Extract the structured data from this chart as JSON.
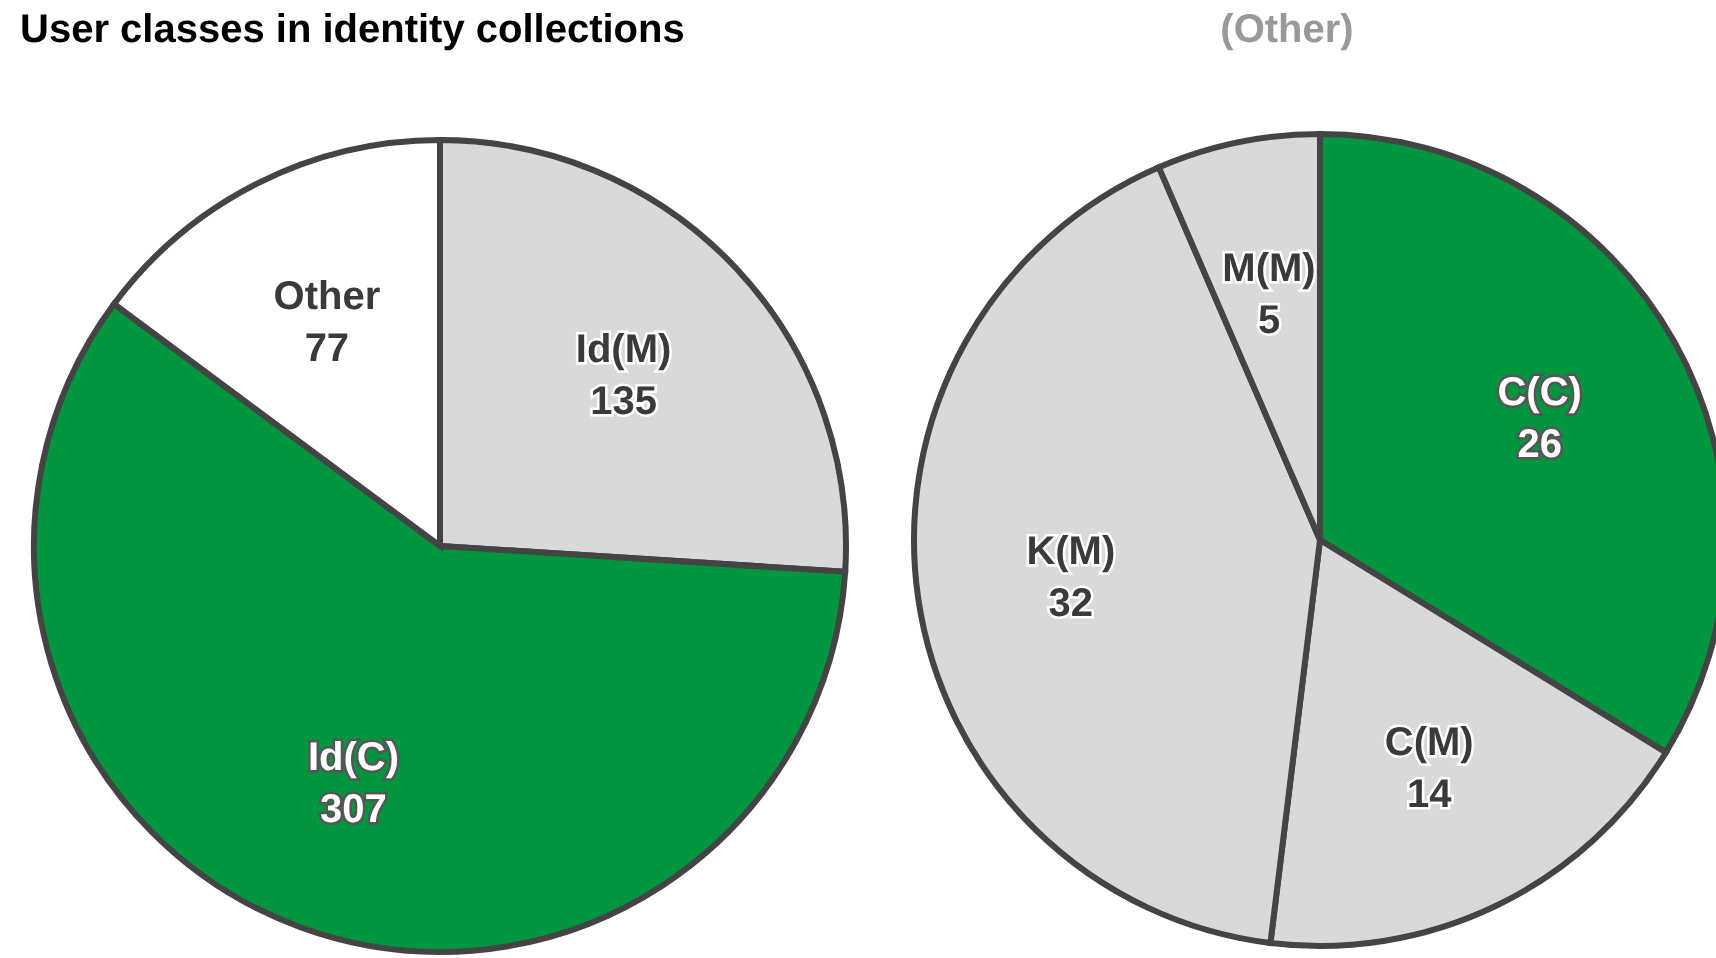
{
  "chart_data": [
    {
      "type": "pie",
      "title": "User classes in identity collections",
      "categories": [
        "Id(M)",
        "Id(C)",
        "Other"
      ],
      "values": [
        135,
        307,
        77
      ],
      "colors": [
        "#d9d9d9",
        "#00963f",
        "#ffffff"
      ],
      "data_labels": true
    },
    {
      "type": "pie",
      "title": "(Other)",
      "categories": [
        "C(C)",
        "C(M)",
        "K(M)",
        "M(M)"
      ],
      "values": [
        26,
        14,
        32,
        5
      ],
      "colors": [
        "#00963f",
        "#d9d9d9",
        "#d9d9d9",
        "#d9d9d9"
      ],
      "data_labels": true
    }
  ]
}
